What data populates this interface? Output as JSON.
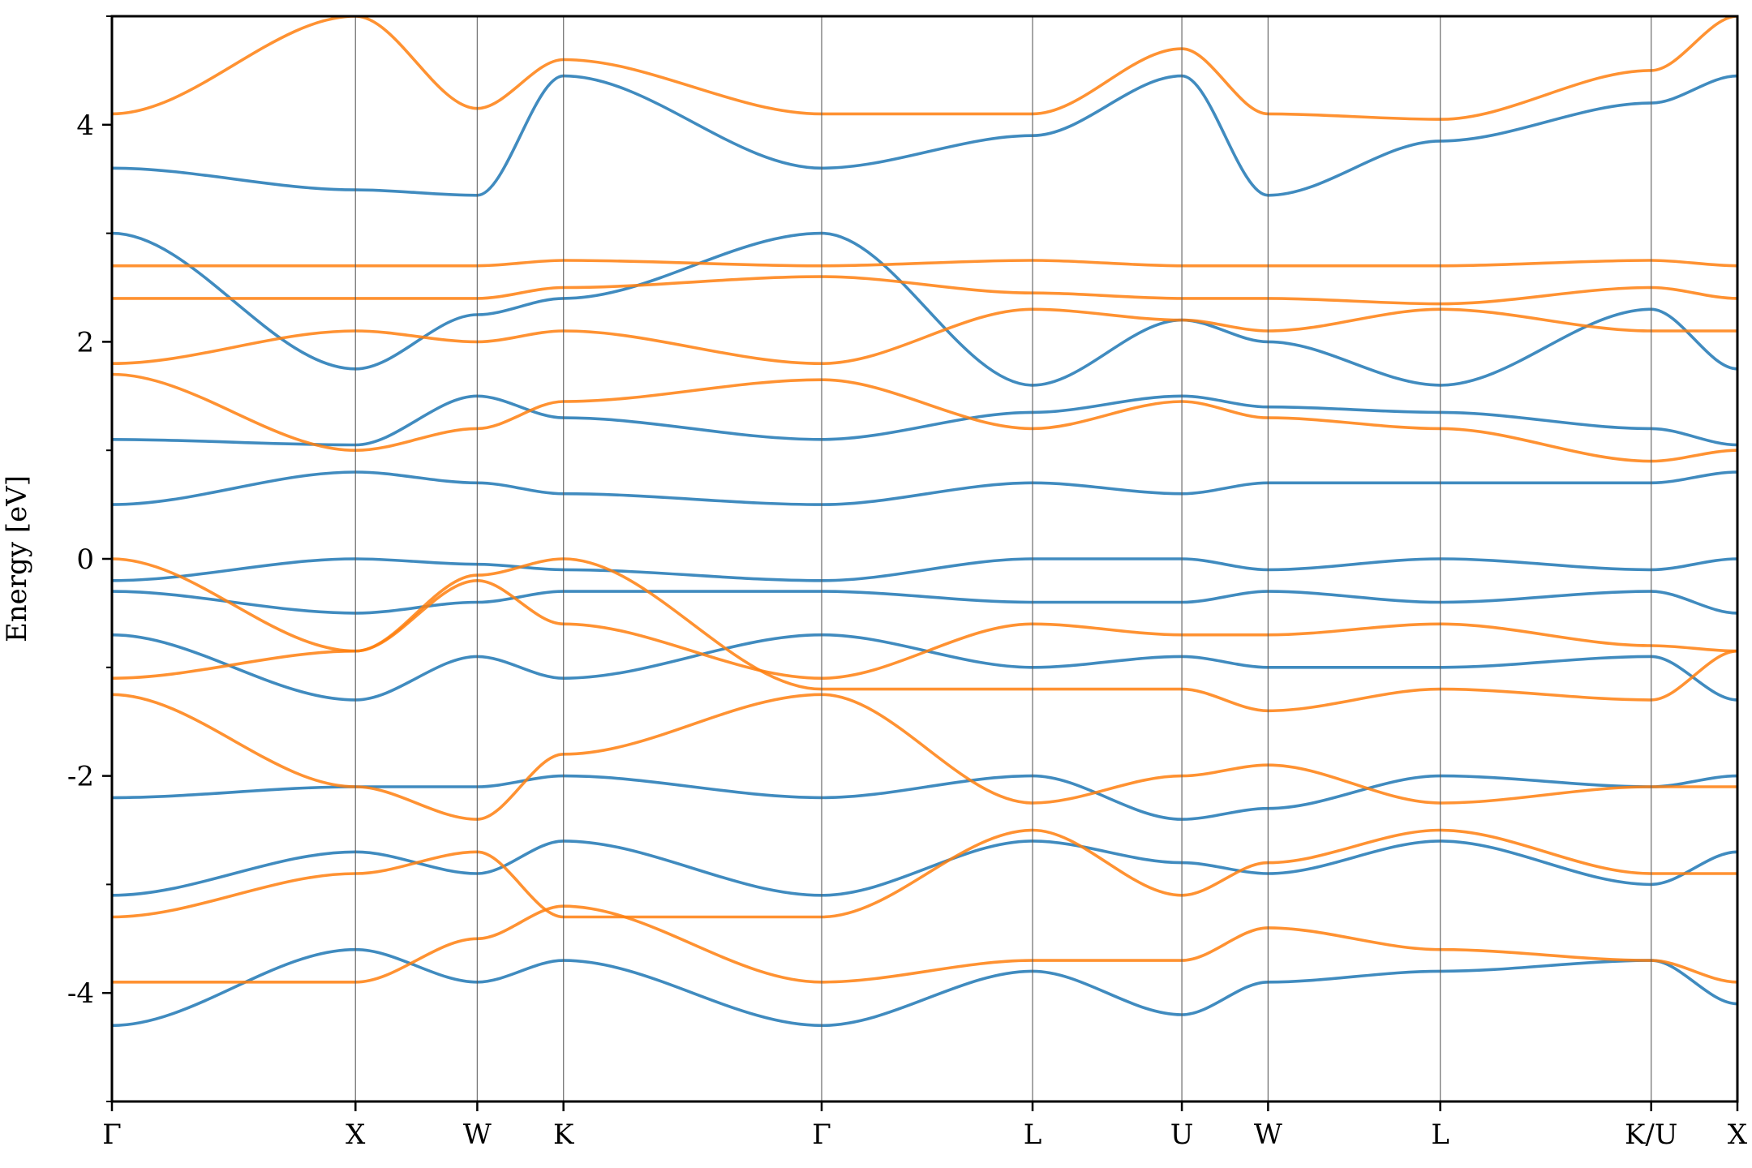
{
  "chart_data": {
    "type": "line",
    "ylabel": "Energy [eV]",
    "ylim": [
      -5,
      5
    ],
    "yticks": [
      -4,
      -2,
      0,
      2,
      4
    ],
    "yticks_minor": [
      -5,
      -3,
      -1,
      1,
      3,
      5
    ],
    "ytick_labels": [
      "-4",
      "-2",
      "0",
      "2",
      "4"
    ],
    "xaxis": {
      "high_symmetry_points": [
        {
          "label": "Γ",
          "k": 0.0
        },
        {
          "label": "X",
          "k": 1.0
        },
        {
          "label": "W",
          "k": 1.5
        },
        {
          "label": "K",
          "k": 1.854
        },
        {
          "label": "Γ",
          "k": 2.914
        },
        {
          "label": "L",
          "k": 3.78
        },
        {
          "label": "U",
          "k": 4.393
        },
        {
          "label": "W",
          "k": 4.747
        },
        {
          "label": "L",
          "k": 5.454
        },
        {
          "label": "K/U",
          "k": 6.32
        },
        {
          "label": "X",
          "k": 6.674
        }
      ],
      "range": [
        0,
        6.674
      ]
    },
    "grid": "vertical lines at high-symmetry points",
    "legend": "none",
    "series": [
      {
        "color": "#1f77b4",
        "bands": [
          [
            -4.3,
            -3.6,
            -3.9,
            -3.7,
            -4.3,
            -3.8,
            -4.2,
            -3.9,
            -3.8,
            -3.7,
            -4.1
          ],
          [
            -3.1,
            -2.7,
            -2.9,
            -2.6,
            -3.1,
            -2.6,
            -2.8,
            -2.9,
            -2.6,
            -3.0,
            -2.7
          ],
          [
            -2.2,
            -2.1,
            -2.1,
            -2.0,
            -2.2,
            -2.0,
            -2.4,
            -2.3,
            -2.0,
            -2.1,
            -2.0
          ],
          [
            -0.7,
            -1.3,
            -0.9,
            -1.1,
            -0.7,
            -1.0,
            -0.9,
            -1.0,
            -1.0,
            -0.9,
            -1.3
          ],
          [
            -0.3,
            -0.5,
            -0.4,
            -0.3,
            -0.3,
            -0.4,
            -0.4,
            -0.3,
            -0.4,
            -0.3,
            -0.5
          ],
          [
            -0.2,
            0.0,
            -0.05,
            -0.1,
            -0.2,
            0.0,
            0.0,
            -0.1,
            0.0,
            -0.1,
            0.0
          ],
          [
            0.5,
            0.8,
            0.7,
            0.6,
            0.5,
            0.7,
            0.6,
            0.7,
            0.7,
            0.7,
            0.8
          ],
          [
            1.1,
            1.05,
            1.5,
            1.3,
            1.1,
            1.35,
            1.5,
            1.4,
            1.35,
            1.2,
            1.05
          ],
          [
            3.0,
            1.75,
            2.25,
            2.4,
            3.0,
            1.6,
            2.2,
            2.0,
            1.6,
            2.3,
            1.75
          ],
          [
            3.6,
            3.4,
            3.35,
            4.45,
            3.6,
            3.9,
            4.45,
            3.35,
            3.85,
            4.2,
            4.45
          ]
        ]
      },
      {
        "color": "#ff7f0e",
        "bands": [
          [
            -3.9,
            -3.9,
            -3.5,
            -3.2,
            -3.9,
            -3.7,
            -3.7,
            -3.4,
            -3.6,
            -3.7,
            -3.9
          ],
          [
            -3.3,
            -2.9,
            -2.7,
            -3.3,
            -3.3,
            -2.5,
            -3.1,
            -2.8,
            -2.5,
            -2.9,
            -2.9
          ],
          [
            -1.25,
            -2.1,
            -2.4,
            -1.8,
            -1.25,
            -2.25,
            -2.0,
            -1.9,
            -2.25,
            -2.1,
            -2.1
          ],
          [
            -1.1,
            -0.85,
            -0.2,
            -0.6,
            -1.1,
            -0.6,
            -0.7,
            -0.7,
            -0.6,
            -0.8,
            -0.85
          ],
          [
            0.0,
            -0.85,
            -0.15,
            0.0,
            -1.2,
            -1.2,
            -1.2,
            -1.4,
            -1.2,
            -1.3,
            -0.85
          ],
          [
            1.7,
            1.0,
            1.2,
            1.45,
            1.65,
            1.2,
            1.45,
            1.3,
            1.2,
            0.9,
            1.0
          ],
          [
            1.8,
            2.1,
            2.0,
            2.1,
            1.8,
            2.3,
            2.2,
            2.1,
            2.3,
            2.1,
            2.1
          ],
          [
            2.4,
            2.4,
            2.4,
            2.5,
            2.6,
            2.45,
            2.4,
            2.4,
            2.35,
            2.5,
            2.4
          ],
          [
            2.7,
            2.7,
            2.7,
            2.75,
            2.7,
            2.75,
            2.7,
            2.7,
            2.7,
            2.75,
            2.7
          ],
          [
            4.1,
            5.0,
            4.15,
            4.6,
            4.1,
            4.1,
            4.7,
            4.1,
            4.05,
            4.5,
            5.0
          ]
        ]
      }
    ]
  }
}
